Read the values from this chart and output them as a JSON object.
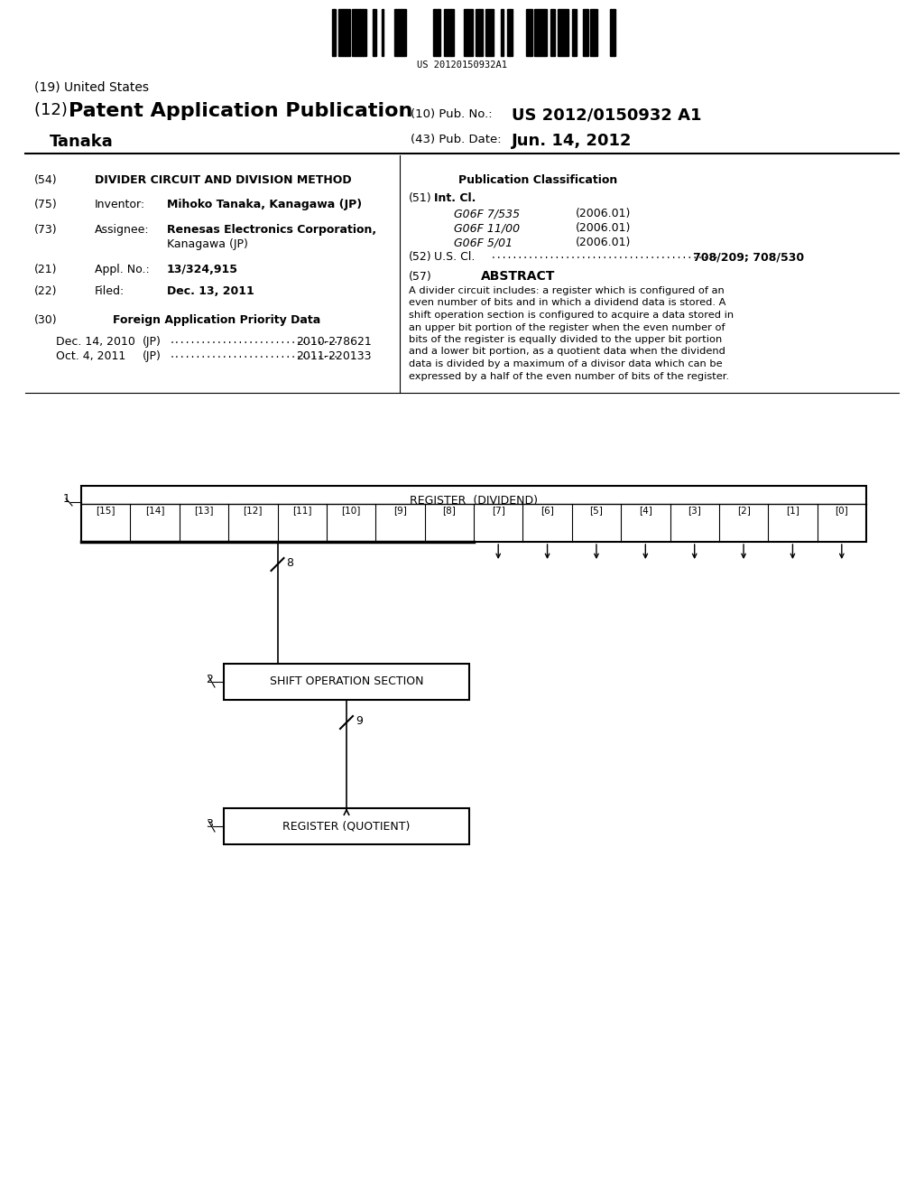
{
  "bg_color": "#ffffff",
  "barcode_text": "US 20120150932A1",
  "title_19": "(19) United States",
  "title_12_prefix": "(12) ",
  "title_12_main": "Patent Application Publication",
  "pub_no_label": "(10) Pub. No.:",
  "pub_no_value": "US 2012/0150932 A1",
  "pub_date_label": "(43) Pub. Date:",
  "pub_date_value": "Jun. 14, 2012",
  "inventor_name": "Tanaka",
  "field54_label": "(54)",
  "field54_value": "DIVIDER CIRCUIT AND DIVISION METHOD",
  "pub_class_label": "Publication Classification",
  "field51_label": "(51)",
  "field51_title": "Int. Cl.",
  "int_cl_entries": [
    {
      "code": "G06F 7/535",
      "year": "(2006.01)"
    },
    {
      "code": "G06F 11/00",
      "year": "(2006.01)"
    },
    {
      "code": "G06F 5/01",
      "year": "(2006.01)"
    }
  ],
  "field52_label": "(52)",
  "field52_title": "U.S. Cl.",
  "field52_value": "708/209; 708/530",
  "field57_label": "(57)",
  "abstract_title": "ABSTRACT",
  "abstract_lines": [
    "A divider circuit includes: a register which is configured of an",
    "even number of bits and in which a dividend data is stored. A",
    "shift operation section is configured to acquire a data stored in",
    "an upper bit portion of the register when the even number of",
    "bits of the register is equally divided to the upper bit portion",
    "and a lower bit portion, as a quotient data when the dividend",
    "data is divided by a maximum of a divisor data which can be",
    "expressed by a half of the even number of bits of the register."
  ],
  "field75_label": "(75)",
  "field75_title": "Inventor:",
  "field75_value": "Mihoko Tanaka, Kanagawa (JP)",
  "field73_label": "(73)",
  "field73_title": "Assignee:",
  "field73_value": "Renesas Electronics Corporation,",
  "field73_value2": "Kanagawa (JP)",
  "field21_label": "(21)",
  "field21_title": "Appl. No.:",
  "field21_value": "13/324,915",
  "field22_label": "(22)",
  "field22_title": "Filed:",
  "field22_value": "Dec. 13, 2011",
  "field30_label": "(30)",
  "field30_title": "Foreign Application Priority Data",
  "priority1_date": "Dec. 14, 2010",
  "priority1_country": "(JP)",
  "priority1_number": "2010-278621",
  "priority2_date": "Oct. 4, 2011",
  "priority2_country": "(JP)",
  "priority2_number": "2011-220133",
  "diagram_register_label": "REGISTER  (DIVIDEND)",
  "diagram_bits": [
    "[15]",
    "[14]",
    "[13]",
    "[12]",
    "[11]",
    "[10]",
    "[9]",
    "[8]",
    "[7]",
    "[6]",
    "[5]",
    "[4]",
    "[3]",
    "[2]",
    "[1]",
    "[0]"
  ],
  "diagram_node1_label": "1",
  "diagram_node2_label": "2",
  "diagram_node3_label": "3",
  "diagram_bus8_label": "8",
  "diagram_bus9_label": "9",
  "diagram_shift_label": "SHIFT OPERATION SECTION",
  "diagram_quotient_label": "REGISTER (QUOTIENT)"
}
